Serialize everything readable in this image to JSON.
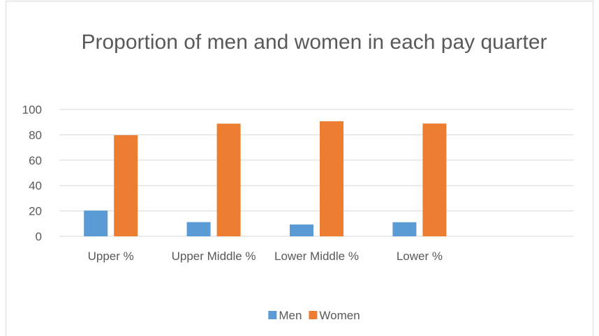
{
  "chart_data": {
    "type": "bar",
    "title": "Proportion of men and women in each pay quarter",
    "categories": [
      "Upper %",
      "Upper Middle %",
      "Lower Middle %",
      "Lower %",
      null
    ],
    "series": [
      {
        "name": "Men",
        "color": "#5b9bd5",
        "values": [
          20.3,
          11.2,
          9.3,
          11.1,
          null
        ]
      },
      {
        "name": "Women",
        "color": "#ed7d31",
        "values": [
          79.7,
          88.8,
          90.7,
          88.9,
          null
        ]
      }
    ],
    "ylim": [
      0,
      100
    ],
    "yticks": [
      0,
      20,
      40,
      60,
      80,
      100
    ],
    "grid": true,
    "legend": "bottom"
  }
}
